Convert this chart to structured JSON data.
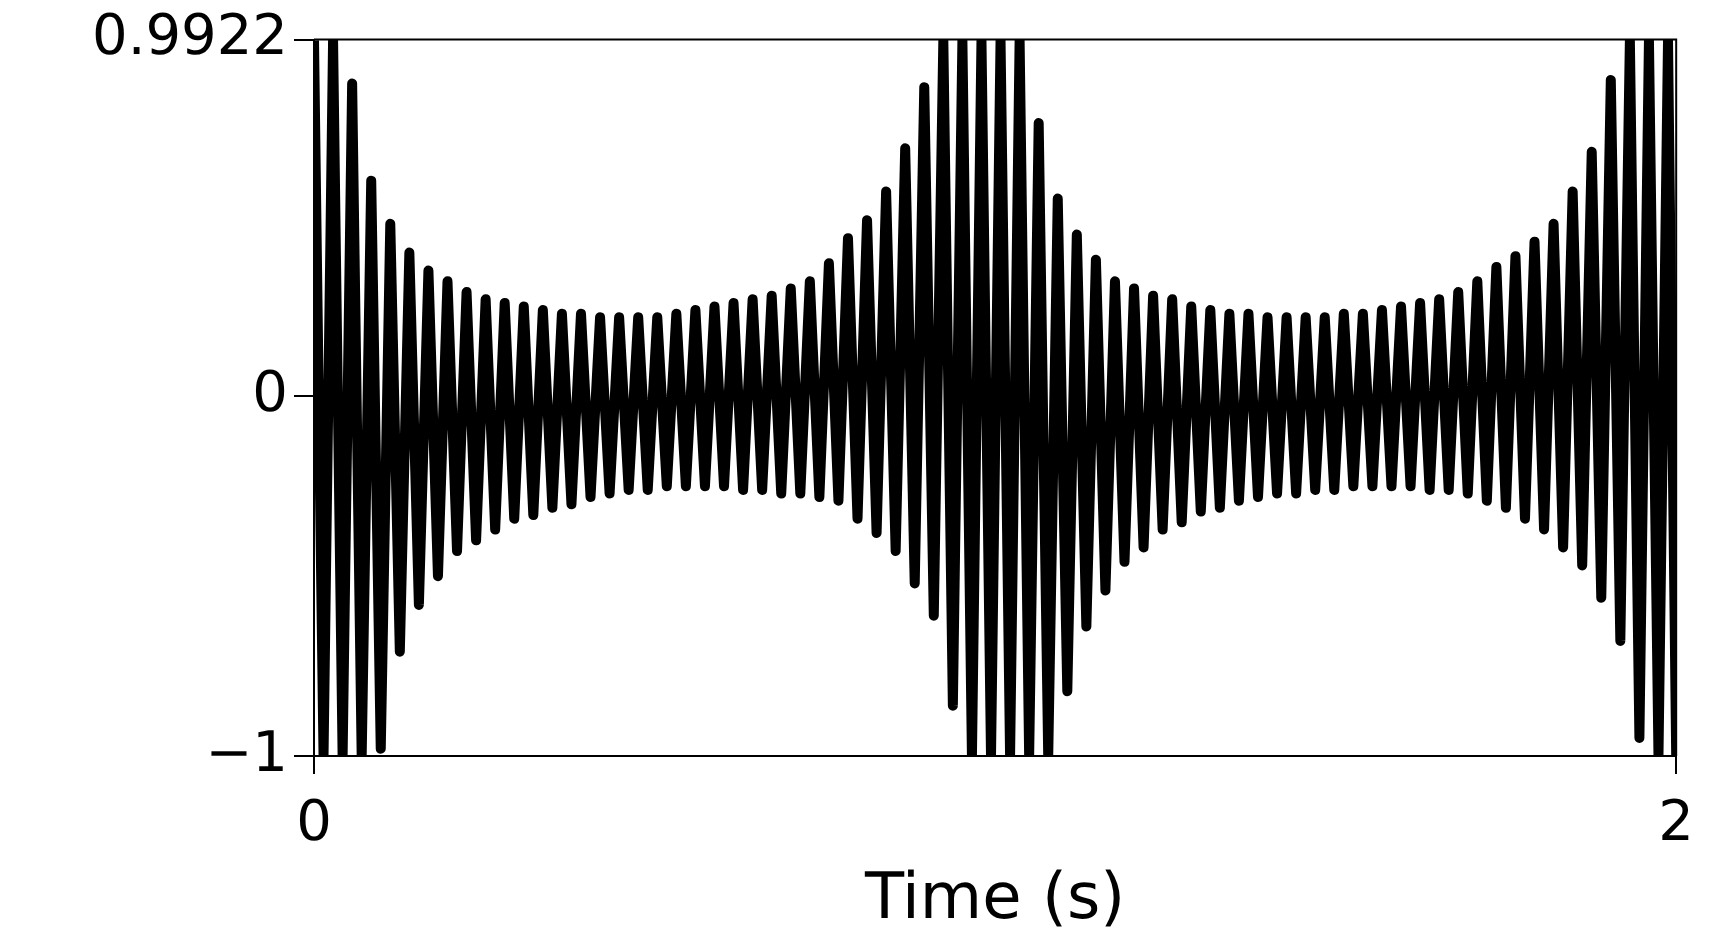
{
  "chart_data": {
    "type": "line",
    "xlabel": "Time (s)",
    "color": "#000000",
    "marker": "none",
    "grid": false,
    "legend": false,
    "xlim": [
      0,
      2
    ],
    "xticks": [
      0,
      2
    ],
    "ylim": [
      -1,
      0.9922
    ],
    "yticks": [
      {
        "value": -1,
        "label": "−1"
      },
      0,
      0.9922
    ],
    "x": [
      0,
      0.014,
      0.028,
      0.042,
      0.056,
      0.07,
      0.084,
      0.098,
      0.112,
      0.126,
      0.14,
      0.154,
      0.168,
      0.182,
      0.196,
      0.21,
      0.224,
      0.238,
      0.252,
      0.266,
      0.28,
      0.294,
      0.308,
      0.322,
      0.336,
      0.35,
      0.364,
      0.378,
      0.392,
      0.406,
      0.42,
      0.434,
      0.448,
      0.462,
      0.476,
      0.49,
      0.504,
      0.518,
      0.532,
      0.546,
      0.56,
      0.574,
      0.588,
      0.602,
      0.616,
      0.63,
      0.644,
      0.658,
      0.672,
      0.686,
      0.7,
      0.714,
      0.728,
      0.742,
      0.756,
      0.77,
      0.784,
      0.798,
      0.812,
      0.826,
      0.84,
      0.854,
      0.868,
      0.882,
      0.896,
      0.91,
      0.924,
      0.938,
      0.952,
      0.966,
      0.98,
      0.994,
      1.008,
      1.022,
      1.036,
      1.05,
      1.064,
      1.078,
      1.092,
      1.106,
      1.12,
      1.134,
      1.148,
      1.162,
      1.176,
      1.19,
      1.204,
      1.218,
      1.232,
      1.246,
      1.26,
      1.274,
      1.288,
      1.302,
      1.316,
      1.33,
      1.344,
      1.358,
      1.372,
      1.386,
      1.4,
      1.414,
      1.428,
      1.442,
      1.456,
      1.47,
      1.484,
      1.498,
      1.512,
      1.526,
      1.54,
      1.554,
      1.568,
      1.582,
      1.596,
      1.61,
      1.624,
      1.638,
      1.652,
      1.666,
      1.68,
      1.694,
      1.708,
      1.722,
      1.736,
      1.75,
      1.764,
      1.778,
      1.792,
      1.806,
      1.82,
      1.834,
      1.848,
      1.862,
      1.876,
      1.89,
      1.904,
      1.918,
      1.932,
      1.946,
      1.96,
      1.974,
      1.988,
      2
    ],
    "values": [
      0.99,
      -1,
      0.99,
      -1,
      0.87,
      -1,
      0.6,
      -0.98,
      0.48,
      -0.71,
      0.4,
      -0.58,
      0.35,
      -0.5,
      0.32,
      -0.43,
      0.29,
      -0.4,
      0.27,
      -0.37,
      0.26,
      -0.34,
      0.25,
      -0.33,
      0.24,
      -0.31,
      0.23,
      -0.3,
      0.23,
      -0.28,
      0.22,
      -0.27,
      0.22,
      -0.26,
      0.22,
      -0.26,
      0.22,
      -0.25,
      0.23,
      -0.25,
      0.24,
      -0.25,
      0.25,
      -0.25,
      0.26,
      -0.26,
      0.27,
      -0.26,
      0.28,
      -0.27,
      0.3,
      -0.27,
      0.32,
      -0.28,
      0.37,
      -0.29,
      0.44,
      -0.34,
      0.49,
      -0.38,
      0.57,
      -0.43,
      0.69,
      -0.52,
      0.86,
      -0.61,
      0.99,
      -0.86,
      0.99,
      -1,
      0.99,
      -1,
      0.99,
      -1,
      0.99,
      -1,
      0.76,
      -1,
      0.55,
      -0.82,
      0.45,
      -0.64,
      0.38,
      -0.54,
      0.32,
      -0.46,
      0.3,
      -0.42,
      0.28,
      -0.37,
      0.27,
      -0.35,
      0.25,
      -0.32,
      0.24,
      -0.31,
      0.23,
      -0.29,
      0.23,
      -0.28,
      0.22,
      -0.27,
      0.22,
      -0.27,
      0.22,
      -0.26,
      0.22,
      -0.26,
      0.23,
      -0.25,
      0.23,
      -0.25,
      0.24,
      -0.25,
      0.25,
      -0.25,
      0.26,
      -0.26,
      0.27,
      -0.26,
      0.29,
      -0.27,
      0.32,
      -0.29,
      0.36,
      -0.31,
      0.39,
      -0.34,
      0.43,
      -0.37,
      0.48,
      -0.42,
      0.57,
      -0.47,
      0.68,
      -0.56,
      0.88,
      -0.68,
      0.99,
      -0.95,
      0.99,
      -1,
      0.99,
      -1
    ]
  }
}
